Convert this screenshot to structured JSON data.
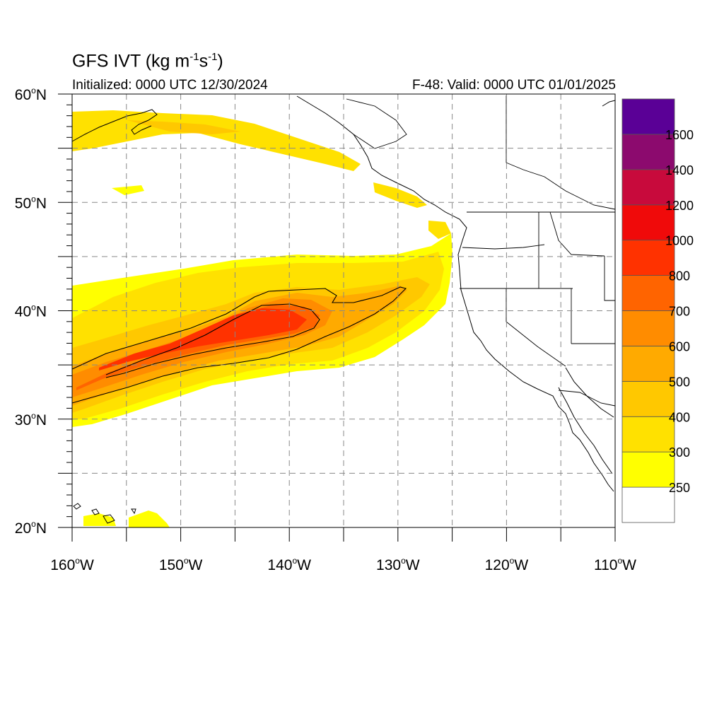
{
  "header": {
    "title_prefix": "GFS IVT (kg m",
    "title_exp1": "-1",
    "title_mid": "s",
    "title_exp2": "-1",
    "title_suffix": ")",
    "initialized": "Initialized: 0000 UTC 12/30/2024",
    "valid": "F-48: Valid: 0000 UTC 01/01/2025"
  },
  "map": {
    "lon_range": [
      -160,
      -110
    ],
    "lat_range": [
      20,
      60
    ],
    "lat_labels": [
      {
        "lat": 60,
        "deg": "60",
        "hemi": "N"
      },
      {
        "lat": 50,
        "deg": "50",
        "hemi": "N"
      },
      {
        "lat": 40,
        "deg": "40",
        "hemi": "N"
      },
      {
        "lat": 30,
        "deg": "30",
        "hemi": "N"
      },
      {
        "lat": 20,
        "deg": "20",
        "hemi": "N"
      }
    ],
    "lon_labels": [
      {
        "lon": -160,
        "deg": "160",
        "hemi": "W"
      },
      {
        "lon": -150,
        "deg": "150",
        "hemi": "W"
      },
      {
        "lon": -140,
        "deg": "140",
        "hemi": "W"
      },
      {
        "lon": -130,
        "deg": "130",
        "hemi": "W"
      },
      {
        "lon": -120,
        "deg": "120",
        "hemi": "W"
      },
      {
        "lon": -110,
        "deg": "110",
        "hemi": "W"
      }
    ],
    "grid_lons": [
      -155,
      -150,
      -145,
      -140,
      -135,
      -130,
      -125,
      -120,
      -115
    ],
    "grid_lats": [
      25,
      30,
      35,
      40,
      45,
      50,
      55
    ],
    "grid_style": "dashed"
  },
  "colorbar": {
    "levels": [
      "250",
      "300",
      "400",
      "500",
      "600",
      "700",
      "800",
      "1000",
      "1200",
      "1400",
      "1600"
    ],
    "colors": [
      "#ffffff",
      "#ffff00",
      "#ffe100",
      "#ffc800",
      "#ffaa00",
      "#ff8c00",
      "#ff6400",
      "#ff3200",
      "#f00a0a",
      "#c80a3c",
      "#8c0a6e",
      "#5a0096"
    ]
  }
}
